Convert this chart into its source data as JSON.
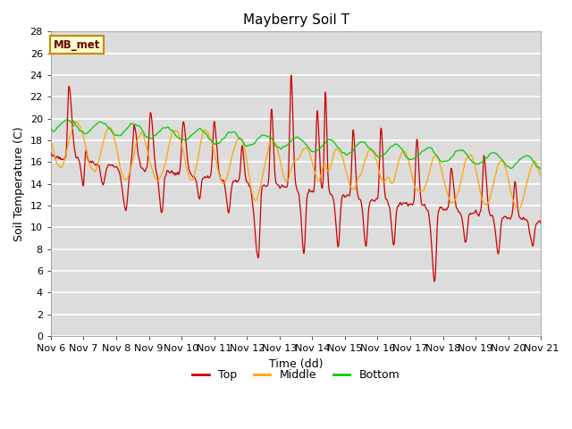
{
  "title": "Mayberry Soil T",
  "xlabel": "Time (dd)",
  "ylabel": "Soil Temperature (C)",
  "ylim": [
    0,
    28
  ],
  "yticks": [
    0,
    2,
    4,
    6,
    8,
    10,
    12,
    14,
    16,
    18,
    20,
    22,
    24,
    26,
    28
  ],
  "x_start": 6.0,
  "x_end": 21.0,
  "xtick_labels": [
    "Nov 6",
    "Nov 7",
    "Nov 8",
    "Nov 9",
    "Nov 10",
    "Nov 11",
    "Nov 12",
    "Nov 13",
    "Nov 14",
    "Nov 15",
    "Nov 16",
    "Nov 17",
    "Nov 18",
    "Nov 19",
    "Nov 20",
    "Nov 21"
  ],
  "xtick_positions": [
    6,
    7,
    8,
    9,
    10,
    11,
    12,
    13,
    14,
    15,
    16,
    17,
    18,
    19,
    20,
    21
  ],
  "top_color": "#cc0000",
  "middle_color": "#ffa500",
  "bottom_color": "#00cc00",
  "background_color": "#dcdcdc",
  "grid_color": "#ffffff",
  "annotation_text": "MB_met",
  "annotation_bg": "#ffffcc",
  "annotation_border": "#cc8800",
  "title_fontsize": 11,
  "axis_fontsize": 9,
  "tick_fontsize": 8,
  "legend_fontsize": 9
}
